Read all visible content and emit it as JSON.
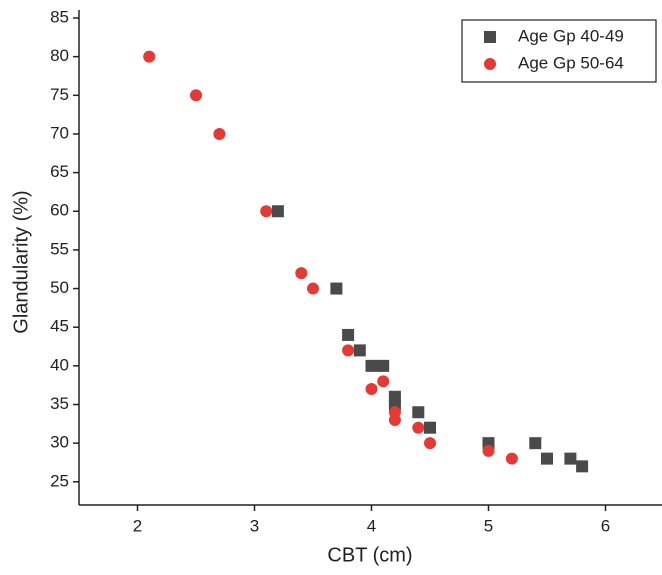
{
  "chart_data": {
    "type": "scatter",
    "x_label": "CBT (cm)",
    "y_label": "Glandularity (%)",
    "xlim": [
      1.5,
      6.5
    ],
    "ylim": [
      22,
      85
    ],
    "xticks": [
      2,
      3,
      4,
      5,
      6
    ],
    "yticks": [
      25,
      30,
      35,
      40,
      45,
      50,
      55,
      60,
      65,
      70,
      75,
      80,
      85
    ],
    "legend": "top-right",
    "series": [
      {
        "name": "Age Gp 40-49",
        "color": "#4a4a4a",
        "marker": "square",
        "x": [
          3.2,
          3.7,
          3.8,
          3.9,
          4.0,
          4.1,
          4.2,
          4.2,
          4.4,
          4.5,
          5.0,
          5.4,
          5.5,
          5.7,
          5.8
        ],
        "values": [
          60,
          50,
          44,
          42,
          40,
          40,
          36,
          35,
          34,
          32,
          30,
          30,
          28,
          28,
          27
        ]
      },
      {
        "name": "Age Gp 50-64",
        "color": "#e53935",
        "marker": "circle",
        "x": [
          2.1,
          2.5,
          2.7,
          3.1,
          3.4,
          3.5,
          3.8,
          4.0,
          4.1,
          4.2,
          4.2,
          4.4,
          4.5,
          5.0,
          5.2
        ],
        "values": [
          80,
          75,
          70,
          60,
          52,
          50,
          42,
          37,
          38,
          34,
          33,
          32,
          30,
          29,
          28
        ]
      }
    ]
  }
}
